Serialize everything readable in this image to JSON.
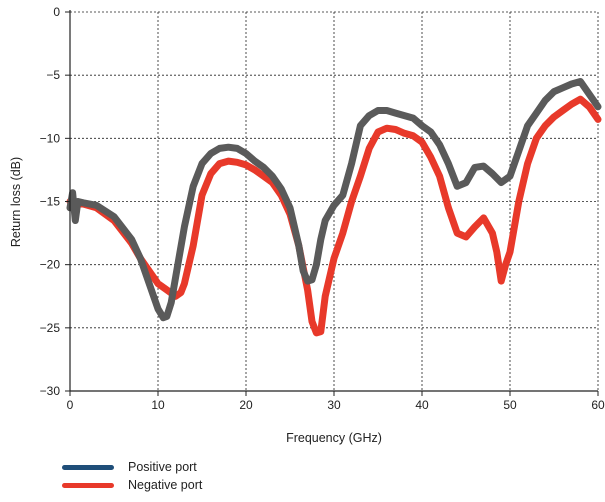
{
  "chart_data": {
    "type": "line",
    "title": "",
    "xlabel": "Frequency (GHz)",
    "ylabel": "Return loss (dB)",
    "xlim": [
      0,
      60
    ],
    "ylim": [
      -30,
      0
    ],
    "x_ticks": [
      "0",
      "10",
      "20",
      "30",
      "40",
      "50",
      "60"
    ],
    "y_ticks": [
      "0",
      "−5",
      "−10",
      "−15",
      "−20",
      "−25",
      "−30"
    ],
    "grid": true,
    "legend_position": "bottom-left",
    "series": [
      {
        "name": "Positive port",
        "legend_color": "#1f4e79",
        "line_color": "#5a5a5a",
        "x": [
          0,
          0.3,
          0.6,
          0.9,
          1.5,
          3,
          5,
          7,
          8,
          9,
          10,
          10.6,
          11,
          11.5,
          12,
          13,
          14,
          15,
          16,
          17,
          18,
          19,
          20,
          21,
          22,
          23,
          24,
          25,
          26,
          26.5,
          27,
          27.5,
          28,
          28.5,
          29,
          30,
          31,
          32,
          33,
          34,
          35,
          36,
          37,
          38,
          39,
          40,
          41,
          42,
          43,
          44,
          45,
          46,
          47,
          48,
          49,
          50,
          51,
          52,
          53,
          54,
          55,
          56,
          57,
          58,
          59,
          60
        ],
        "y": [
          -15.5,
          -14.3,
          -16.5,
          -15.0,
          -15.1,
          -15.3,
          -16.2,
          -18.0,
          -19.5,
          -21.5,
          -23.5,
          -24.2,
          -24.1,
          -23.0,
          -21.0,
          -17.0,
          -13.8,
          -12.0,
          -11.2,
          -10.8,
          -10.7,
          -10.8,
          -11.2,
          -11.8,
          -12.3,
          -13.0,
          -14.0,
          -15.5,
          -18.5,
          -20.5,
          -21.3,
          -21.2,
          -20.0,
          -18.0,
          -16.5,
          -15.3,
          -14.5,
          -12.0,
          -9.0,
          -8.2,
          -7.8,
          -7.8,
          -8.0,
          -8.2,
          -8.4,
          -9.0,
          -9.5,
          -10.5,
          -12.0,
          -13.8,
          -13.5,
          -12.3,
          -12.2,
          -12.8,
          -13.5,
          -13.0,
          -11.0,
          -9.0,
          -8.0,
          -7.0,
          -6.3,
          -6.0,
          -5.7,
          -5.5,
          -6.5,
          -7.5
        ]
      },
      {
        "name": "Negative port",
        "legend_color": "#e8392a",
        "line_color": "#e8392a",
        "x": [
          0,
          0.3,
          0.6,
          0.9,
          1.5,
          3,
          5,
          7,
          8,
          9,
          10,
          11,
          12,
          12.6,
          13,
          14,
          15,
          16,
          17,
          18,
          19,
          20,
          21,
          22,
          23,
          24,
          25,
          26,
          27,
          27.5,
          28,
          28.5,
          29,
          30,
          31,
          32,
          33,
          34,
          35,
          36,
          37,
          38,
          39,
          40,
          41,
          42,
          43,
          44,
          45,
          46,
          47,
          48,
          48.5,
          49,
          49.5,
          50,
          51,
          52,
          53,
          54,
          55,
          56,
          57,
          58,
          59,
          60
        ],
        "y": [
          -15.0,
          -14.8,
          -15.5,
          -15.2,
          -15.2,
          -15.5,
          -16.5,
          -18.3,
          -19.5,
          -20.5,
          -21.5,
          -22.0,
          -22.5,
          -22.2,
          -21.5,
          -18.5,
          -14.5,
          -12.8,
          -12.0,
          -11.8,
          -11.9,
          -12.1,
          -12.5,
          -13.0,
          -13.5,
          -14.5,
          -16.0,
          -18.5,
          -22.0,
          -24.5,
          -25.4,
          -25.3,
          -22.5,
          -19.5,
          -17.5,
          -15.0,
          -13.0,
          -10.8,
          -9.5,
          -9.2,
          -9.3,
          -9.6,
          -9.8,
          -10.3,
          -11.5,
          -13.0,
          -15.5,
          -17.5,
          -17.8,
          -17.0,
          -16.3,
          -17.5,
          -19.0,
          -21.3,
          -20.0,
          -19.0,
          -15.0,
          -12.0,
          -10.0,
          -9.0,
          -8.3,
          -7.8,
          -7.3,
          -6.9,
          -7.5,
          -8.5
        ]
      }
    ]
  }
}
